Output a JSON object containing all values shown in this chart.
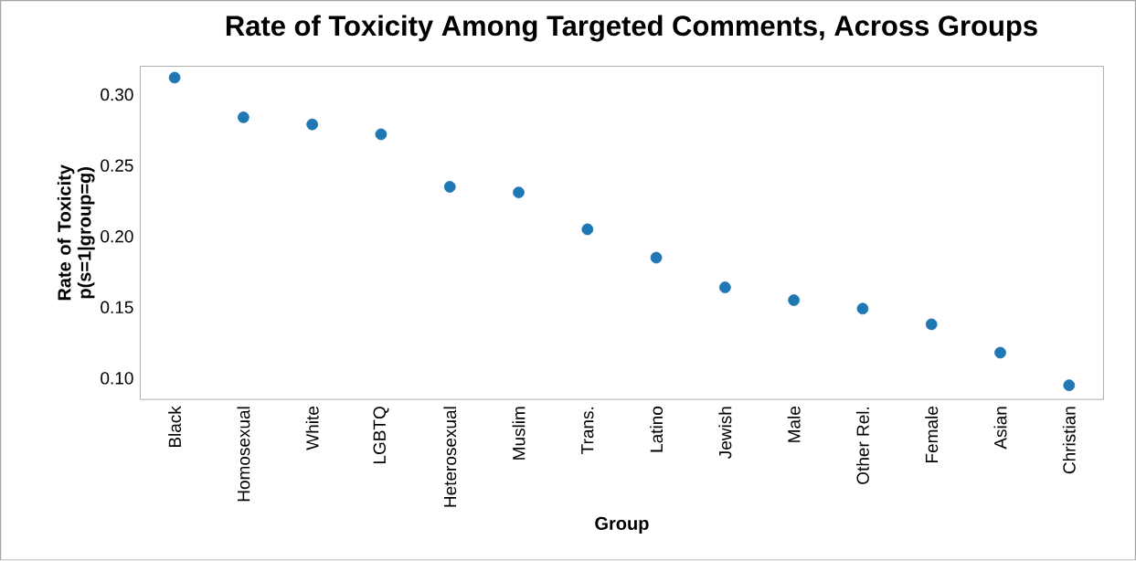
{
  "chart_data": {
    "type": "scatter",
    "title": "Rate of Toxicity Among Targeted Comments, Across Groups",
    "xlabel": "Group",
    "ylabel": "Rate of Toxicity p(s=1|group=g)",
    "categories": [
      "Black",
      "Homosexual",
      "White",
      "LGBTQ",
      "Heterosexual",
      "Muslim",
      "Trans.",
      "Latino",
      "Jewish",
      "Male",
      "Other Rel.",
      "Female",
      "Asian",
      "Christian"
    ],
    "values": [
      0.312,
      0.284,
      0.279,
      0.272,
      0.235,
      0.231,
      0.205,
      0.185,
      0.164,
      0.155,
      0.149,
      0.138,
      0.118,
      0.095
    ],
    "color": "#1f77b4",
    "marker": "circle",
    "ylim": [
      0.085,
      0.32
    ],
    "yticks": [
      {
        "value": 0.1,
        "label": "0.10"
      },
      0.15,
      {
        "value": 0.2,
        "label": "0.20"
      },
      0.25,
      {
        "value": 0.3,
        "label": "0.30"
      }
    ]
  }
}
